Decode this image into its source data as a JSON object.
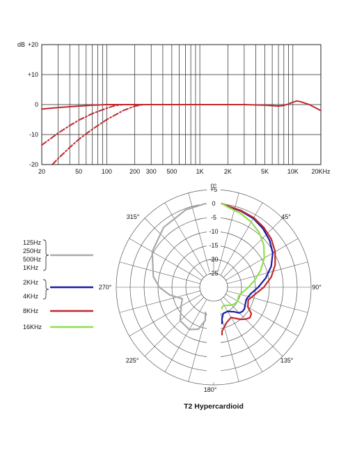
{
  "chart_data": [
    {
      "type": "line",
      "chart": "frequency-response",
      "xscale": "log",
      "xlim": [
        20,
        20000
      ],
      "ylim": [
        -20,
        20
      ],
      "ylabel": "dB",
      "yticks": [
        {
          "v": 20,
          "label": "+20"
        },
        {
          "v": 10,
          "label": "+10"
        },
        {
          "v": 0,
          "label": "0"
        },
        {
          "v": -10,
          "label": "-10"
        },
        {
          "v": -20,
          "label": "-20"
        }
      ],
      "xticks": [
        {
          "v": 20,
          "label": "20"
        },
        {
          "v": 50,
          "label": "50"
        },
        {
          "v": 100,
          "label": "100"
        },
        {
          "v": 200,
          "label": "200"
        },
        {
          "v": 300,
          "label": "300"
        },
        {
          "v": 500,
          "label": "500"
        },
        {
          "v": 1000,
          "label": "1K"
        },
        {
          "v": 2000,
          "label": "2K"
        },
        {
          "v": 5000,
          "label": "5K"
        },
        {
          "v": 10000,
          "label": "10K"
        },
        {
          "v": 20000,
          "label": "20KHz"
        }
      ],
      "grid": true,
      "series": [
        {
          "style": "solid",
          "color": "#c0272d",
          "x": [
            20,
            30,
            50,
            70,
            100,
            150,
            200,
            500,
            1000,
            2000,
            3000,
            5000,
            7000,
            8000,
            9000,
            10000,
            11000,
            12000,
            15000,
            20000
          ],
          "y": [
            -1.5,
            -1.0,
            -0.5,
            -0.2,
            0,
            0,
            0,
            0,
            0,
            0,
            0,
            -0.2,
            -0.5,
            -0.3,
            0.2,
            0.8,
            1.2,
            1.0,
            0,
            -2.0
          ]
        },
        {
          "style": "dash-dot",
          "color": "#c0272d",
          "x": [
            20,
            30,
            40,
            50,
            70,
            100,
            120,
            150
          ],
          "y": [
            -13.5,
            -9.5,
            -7.0,
            -5.2,
            -3.0,
            -1.2,
            -0.4,
            0
          ]
        },
        {
          "style": "dash-dot",
          "color": "#c0272d",
          "x": [
            26,
            30,
            40,
            50,
            70,
            100,
            150,
            200,
            250
          ],
          "y": [
            -20,
            -18.0,
            -14.3,
            -11.6,
            -8.2,
            -5.0,
            -2.0,
            -0.5,
            0
          ]
        }
      ]
    },
    {
      "type": "polar",
      "chart": "polar-pattern",
      "title": "T2  Hypercardioid",
      "rlim": [
        -25,
        5
      ],
      "rings": [
        {
          "v": 5,
          "label": "+5"
        },
        {
          "v": 0,
          "label": "0"
        },
        {
          "v": -5,
          "label": "-5"
        },
        {
          "v": -10,
          "label": "-10"
        },
        {
          "v": -15,
          "label": "-15"
        },
        {
          "v": -20,
          "label": "-20"
        },
        {
          "v": -25,
          "label": "-25"
        }
      ],
      "angle_labels": [
        {
          "deg": 0,
          "label": "0°"
        },
        {
          "deg": 45,
          "label": "45°"
        },
        {
          "deg": 90,
          "label": "90°"
        },
        {
          "deg": 135,
          "label": "135°"
        },
        {
          "deg": 180,
          "label": "180°"
        },
        {
          "deg": 225,
          "label": "225°"
        },
        {
          "deg": 270,
          "label": "270°"
        },
        {
          "deg": 315,
          "label": "315°"
        }
      ],
      "series": [
        {
          "name": "125Hz 250Hz 500Hz 1KHz",
          "color": "#a9a9a9",
          "side": "left",
          "angles": [
            0,
            20,
            40,
            60,
            80,
            90,
            100,
            110,
            120,
            135,
            150,
            160,
            170,
            180
          ],
          "db": [
            0,
            -0.5,
            -2,
            -4.5,
            -8,
            -10.5,
            -14,
            -18,
            -16.5,
            -13,
            -12.5,
            -14,
            -18,
            -21
          ]
        },
        {
          "name": "2KHz 4KHz",
          "color": "#1a1aa6",
          "side": "right",
          "angles": [
            0,
            10,
            20,
            30,
            40,
            50,
            60,
            70,
            80,
            90,
            100,
            110,
            120,
            125,
            130,
            135,
            140,
            150,
            160,
            170,
            180
          ],
          "db": [
            0,
            -0.5,
            -1,
            -1.5,
            -2.5,
            -3.8,
            -5.5,
            -8,
            -11,
            -14,
            -16.5,
            -17.5,
            -17,
            -16.5,
            -16.5,
            -17,
            -18.5,
            -20,
            -20,
            -18.5,
            -17
          ]
        },
        {
          "name": "8KHz",
          "color": "#c1272d",
          "side": "right",
          "angles": [
            0,
            10,
            20,
            30,
            40,
            50,
            60,
            70,
            80,
            90,
            100,
            110,
            120,
            125,
            130,
            135,
            140,
            150,
            160,
            170,
            180
          ],
          "db": [
            0,
            -0.4,
            -0.8,
            -1.2,
            -2,
            -3,
            -4.5,
            -6.5,
            -9,
            -12,
            -15,
            -16.8,
            -15.8,
            -13.5,
            -13,
            -13.8,
            -15,
            -17.5,
            -16.5,
            -14,
            -13
          ]
        },
        {
          "name": "16KHz",
          "color": "#8fe04a",
          "side": "right",
          "angles": [
            0,
            10,
            20,
            30,
            40,
            50,
            60,
            70,
            80,
            90,
            100,
            110,
            120,
            130,
            140,
            150,
            160,
            170,
            180
          ],
          "db": [
            0,
            -0.8,
            -1.8,
            -3,
            -4.5,
            -6.5,
            -9,
            -12,
            -15,
            -17.5,
            -19.5,
            -20.5,
            -20,
            -20.5,
            -21.5,
            -22.5,
            -22.5,
            -22.5,
            -22.3
          ]
        }
      ],
      "legend": [
        {
          "lines": [
            "125Hz",
            "250Hz",
            "500Hz",
            "1KHz"
          ],
          "color": "#a9a9a9",
          "brace": true
        },
        {
          "lines": [
            "2KHz",
            "4KHz"
          ],
          "color": "#1a1aa6",
          "brace": true
        },
        {
          "lines": [
            "8KHz"
          ],
          "color": "#c1272d",
          "brace": false
        },
        {
          "lines": [
            "16KHz"
          ],
          "color": "#8fe04a",
          "brace": false
        }
      ]
    }
  ]
}
